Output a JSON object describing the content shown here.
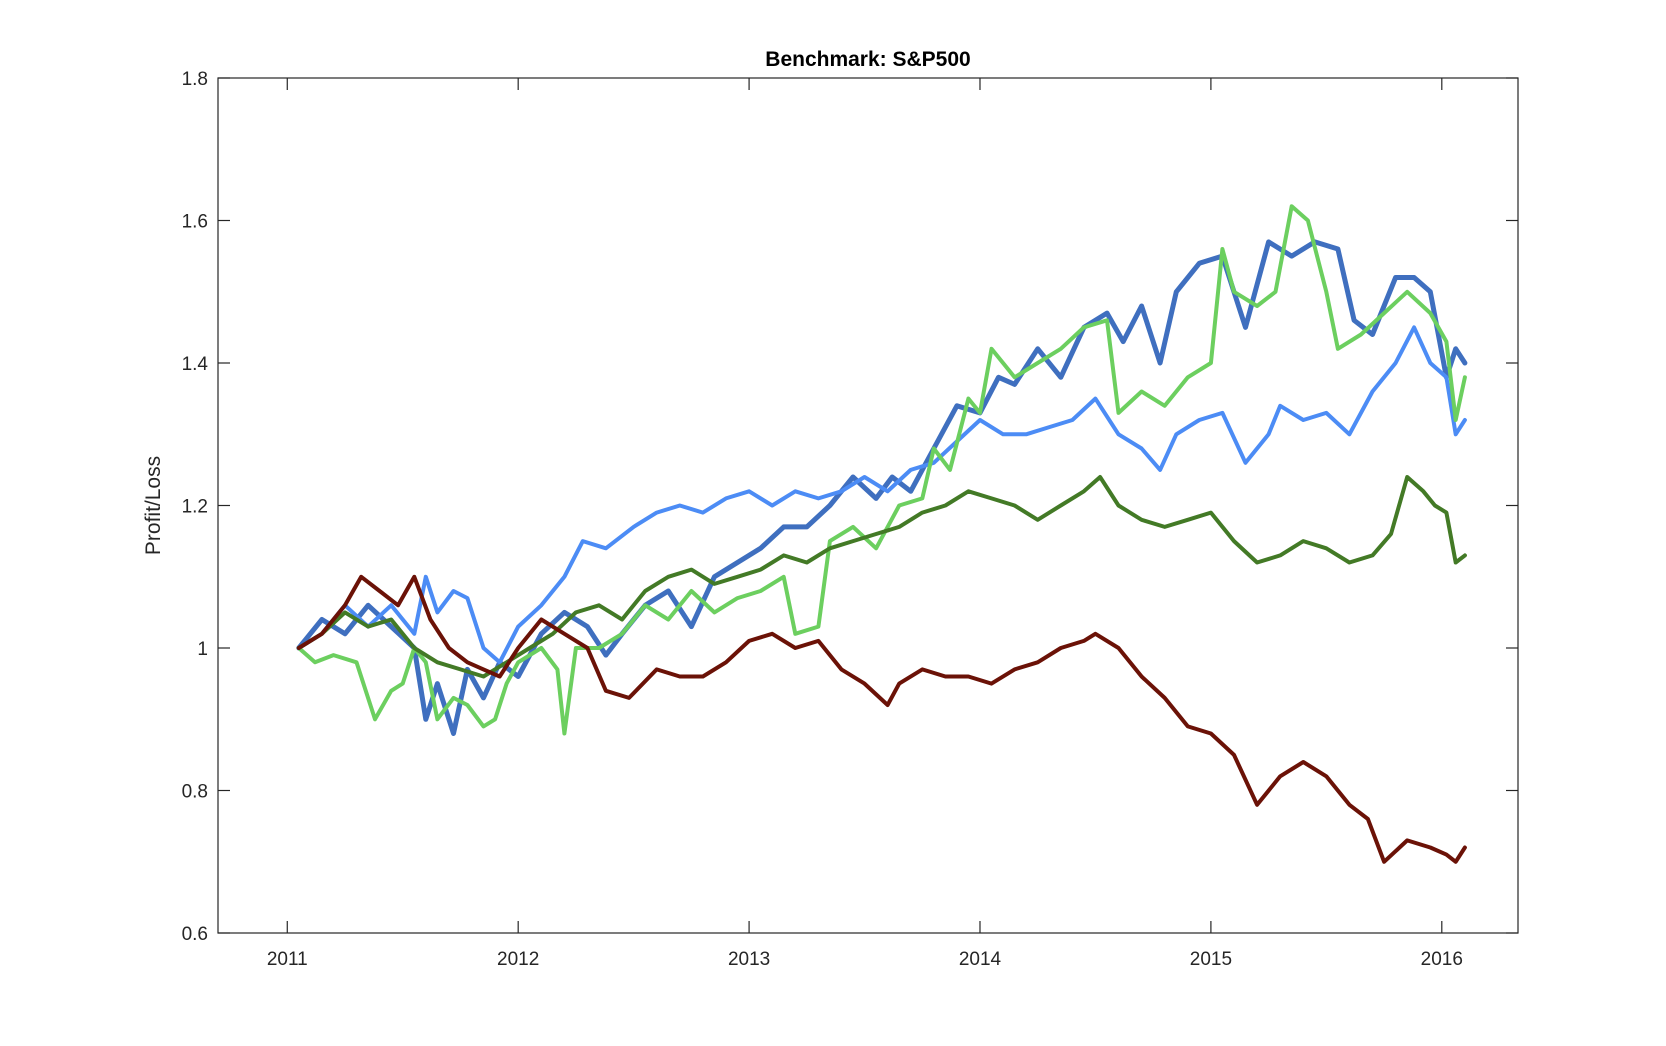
{
  "chart_data": {
    "type": "line",
    "title": "Benchmark: S&P500",
    "xlabel": "",
    "ylabel": "Profit/Loss",
    "xlim": [
      2010.7,
      2016.33
    ],
    "ylim": [
      0.6,
      1.8
    ],
    "xticks": [
      2011,
      2012,
      2013,
      2014,
      2015,
      2016
    ],
    "xtick_labels": [
      "2011",
      "2012",
      "2013",
      "2014",
      "2015",
      "2016"
    ],
    "yticks": [
      0.6,
      0.8,
      1,
      1.2,
      1.4,
      1.6,
      1.8
    ],
    "ytick_labels": [
      "0.6",
      "0.8",
      "1",
      "1.2",
      "1.4",
      "1.6",
      "1.8"
    ],
    "grid": false,
    "box": true,
    "legend": null,
    "series": [
      {
        "color": "#3f6fbf",
        "width": 5,
        "x": [
          2011.05,
          2011.15,
          2011.25,
          2011.35,
          2011.45,
          2011.55,
          2011.6,
          2011.65,
          2011.72,
          2011.78,
          2011.85,
          2011.92,
          2012.0,
          2012.1,
          2012.2,
          2012.3,
          2012.38,
          2012.45,
          2012.55,
          2012.65,
          2012.75,
          2012.85,
          2012.95,
          2013.05,
          2013.15,
          2013.25,
          2013.35,
          2013.45,
          2013.55,
          2013.62,
          2013.7,
          2013.8,
          2013.9,
          2014.0,
          2014.08,
          2014.15,
          2014.25,
          2014.35,
          2014.45,
          2014.55,
          2014.62,
          2014.7,
          2014.78,
          2014.85,
          2014.95,
          2015.05,
          2015.15,
          2015.25,
          2015.35,
          2015.45,
          2015.55,
          2015.62,
          2015.7,
          2015.8,
          2015.88,
          2015.95,
          2016.02,
          2016.06,
          2016.1
        ],
        "y": [
          1.0,
          1.04,
          1.02,
          1.06,
          1.03,
          1.0,
          0.9,
          0.95,
          0.88,
          0.97,
          0.93,
          0.98,
          0.96,
          1.02,
          1.05,
          1.03,
          0.99,
          1.02,
          1.06,
          1.08,
          1.03,
          1.1,
          1.12,
          1.14,
          1.17,
          1.17,
          1.2,
          1.24,
          1.21,
          1.24,
          1.22,
          1.28,
          1.34,
          1.33,
          1.38,
          1.37,
          1.42,
          1.38,
          1.45,
          1.47,
          1.43,
          1.48,
          1.4,
          1.5,
          1.54,
          1.55,
          1.45,
          1.57,
          1.55,
          1.57,
          1.56,
          1.46,
          1.44,
          1.52,
          1.52,
          1.5,
          1.38,
          1.42,
          1.4
        ]
      },
      {
        "color": "#4c8cf5",
        "width": 4,
        "x": [
          2011.05,
          2011.15,
          2011.25,
          2011.35,
          2011.45,
          2011.55,
          2011.6,
          2011.65,
          2011.72,
          2011.78,
          2011.85,
          2011.92,
          2012.0,
          2012.1,
          2012.2,
          2012.28,
          2012.38,
          2012.5,
          2012.6,
          2012.7,
          2012.8,
          2012.9,
          2013.0,
          2013.1,
          2013.2,
          2013.3,
          2013.4,
          2013.5,
          2013.6,
          2013.7,
          2013.8,
          2013.9,
          2014.0,
          2014.1,
          2014.2,
          2014.3,
          2014.4,
          2014.5,
          2014.6,
          2014.7,
          2014.78,
          2014.85,
          2014.95,
          2015.05,
          2015.15,
          2015.25,
          2015.3,
          2015.4,
          2015.5,
          2015.6,
          2015.7,
          2015.8,
          2015.88,
          2015.95,
          2016.02,
          2016.06,
          2016.1
        ],
        "y": [
          1.0,
          1.02,
          1.06,
          1.03,
          1.06,
          1.02,
          1.1,
          1.05,
          1.08,
          1.07,
          1.0,
          0.98,
          1.03,
          1.06,
          1.1,
          1.15,
          1.14,
          1.17,
          1.19,
          1.2,
          1.19,
          1.21,
          1.22,
          1.2,
          1.22,
          1.21,
          1.22,
          1.24,
          1.22,
          1.25,
          1.26,
          1.29,
          1.32,
          1.3,
          1.3,
          1.31,
          1.32,
          1.35,
          1.3,
          1.28,
          1.25,
          1.3,
          1.32,
          1.33,
          1.26,
          1.3,
          1.34,
          1.32,
          1.33,
          1.3,
          1.36,
          1.4,
          1.45,
          1.4,
          1.38,
          1.3,
          1.32
        ]
      },
      {
        "color": "#6ccf5f",
        "width": 4,
        "x": [
          2011.05,
          2011.12,
          2011.2,
          2011.3,
          2011.38,
          2011.45,
          2011.5,
          2011.55,
          2011.6,
          2011.65,
          2011.72,
          2011.78,
          2011.85,
          2011.9,
          2011.95,
          2012.0,
          2012.1,
          2012.17,
          2012.2,
          2012.25,
          2012.35,
          2012.45,
          2012.55,
          2012.65,
          2012.75,
          2012.85,
          2012.95,
          2013.05,
          2013.15,
          2013.2,
          2013.3,
          2013.35,
          2013.45,
          2013.55,
          2013.65,
          2013.75,
          2013.8,
          2013.87,
          2013.95,
          2014.0,
          2014.05,
          2014.15,
          2014.25,
          2014.35,
          2014.45,
          2014.55,
          2014.6,
          2014.7,
          2014.8,
          2014.9,
          2015.0,
          2015.05,
          2015.1,
          2015.2,
          2015.28,
          2015.35,
          2015.42,
          2015.5,
          2015.55,
          2015.65,
          2015.75,
          2015.85,
          2015.95,
          2016.02,
          2016.06,
          2016.1
        ],
        "y": [
          1.0,
          0.98,
          0.99,
          0.98,
          0.9,
          0.94,
          0.95,
          1.0,
          0.98,
          0.9,
          0.93,
          0.92,
          0.89,
          0.9,
          0.95,
          0.98,
          1.0,
          0.97,
          0.88,
          1.0,
          1.0,
          1.02,
          1.06,
          1.04,
          1.08,
          1.05,
          1.07,
          1.08,
          1.1,
          1.02,
          1.03,
          1.15,
          1.17,
          1.14,
          1.2,
          1.21,
          1.28,
          1.25,
          1.35,
          1.33,
          1.42,
          1.38,
          1.4,
          1.42,
          1.45,
          1.46,
          1.33,
          1.36,
          1.34,
          1.38,
          1.4,
          1.56,
          1.5,
          1.48,
          1.5,
          1.62,
          1.6,
          1.5,
          1.42,
          1.44,
          1.47,
          1.5,
          1.47,
          1.43,
          1.32,
          1.38
        ]
      },
      {
        "color": "#437a26",
        "width": 4,
        "x": [
          2011.05,
          2011.15,
          2011.25,
          2011.35,
          2011.45,
          2011.55,
          2011.65,
          2011.75,
          2011.85,
          2011.95,
          2012.05,
          2012.15,
          2012.25,
          2012.35,
          2012.45,
          2012.55,
          2012.65,
          2012.75,
          2012.85,
          2012.95,
          2013.05,
          2013.15,
          2013.25,
          2013.35,
          2013.45,
          2013.55,
          2013.65,
          2013.75,
          2013.85,
          2013.95,
          2014.05,
          2014.15,
          2014.25,
          2014.35,
          2014.45,
          2014.52,
          2014.6,
          2014.7,
          2014.8,
          2014.9,
          2015.0,
          2015.1,
          2015.2,
          2015.3,
          2015.4,
          2015.5,
          2015.6,
          2015.7,
          2015.78,
          2015.85,
          2015.92,
          2015.97,
          2016.02,
          2016.06,
          2016.1
        ],
        "y": [
          1.0,
          1.02,
          1.05,
          1.03,
          1.04,
          1.0,
          0.98,
          0.97,
          0.96,
          0.98,
          1.0,
          1.02,
          1.05,
          1.06,
          1.04,
          1.08,
          1.1,
          1.11,
          1.09,
          1.1,
          1.11,
          1.13,
          1.12,
          1.14,
          1.15,
          1.16,
          1.17,
          1.19,
          1.2,
          1.22,
          1.21,
          1.2,
          1.18,
          1.2,
          1.22,
          1.24,
          1.2,
          1.18,
          1.17,
          1.18,
          1.19,
          1.15,
          1.12,
          1.13,
          1.15,
          1.14,
          1.12,
          1.13,
          1.16,
          1.24,
          1.22,
          1.2,
          1.19,
          1.12,
          1.13
        ]
      },
      {
        "color": "#6b1207",
        "width": 4,
        "x": [
          2011.05,
          2011.15,
          2011.25,
          2011.32,
          2011.4,
          2011.48,
          2011.55,
          2011.62,
          2011.7,
          2011.78,
          2011.85,
          2011.92,
          2012.0,
          2012.1,
          2012.2,
          2012.3,
          2012.38,
          2012.48,
          2012.6,
          2012.7,
          2012.8,
          2012.9,
          2013.0,
          2013.1,
          2013.2,
          2013.3,
          2013.4,
          2013.5,
          2013.6,
          2013.65,
          2013.75,
          2013.85,
          2013.95,
          2014.05,
          2014.15,
          2014.25,
          2014.35,
          2014.45,
          2014.5,
          2014.6,
          2014.7,
          2014.8,
          2014.9,
          2015.0,
          2015.1,
          2015.2,
          2015.3,
          2015.4,
          2015.5,
          2015.6,
          2015.68,
          2015.75,
          2015.85,
          2015.95,
          2016.02,
          2016.06,
          2016.1
        ],
        "y": [
          1.0,
          1.02,
          1.06,
          1.1,
          1.08,
          1.06,
          1.1,
          1.04,
          1.0,
          0.98,
          0.97,
          0.96,
          1.0,
          1.04,
          1.02,
          1.0,
          0.94,
          0.93,
          0.97,
          0.96,
          0.96,
          0.98,
          1.01,
          1.02,
          1.0,
          1.01,
          0.97,
          0.95,
          0.92,
          0.95,
          0.97,
          0.96,
          0.96,
          0.95,
          0.97,
          0.98,
          1.0,
          1.01,
          1.02,
          1.0,
          0.96,
          0.93,
          0.89,
          0.88,
          0.85,
          0.78,
          0.82,
          0.84,
          0.82,
          0.78,
          0.76,
          0.7,
          0.73,
          0.72,
          0.71,
          0.7,
          0.72
        ]
      }
    ]
  }
}
